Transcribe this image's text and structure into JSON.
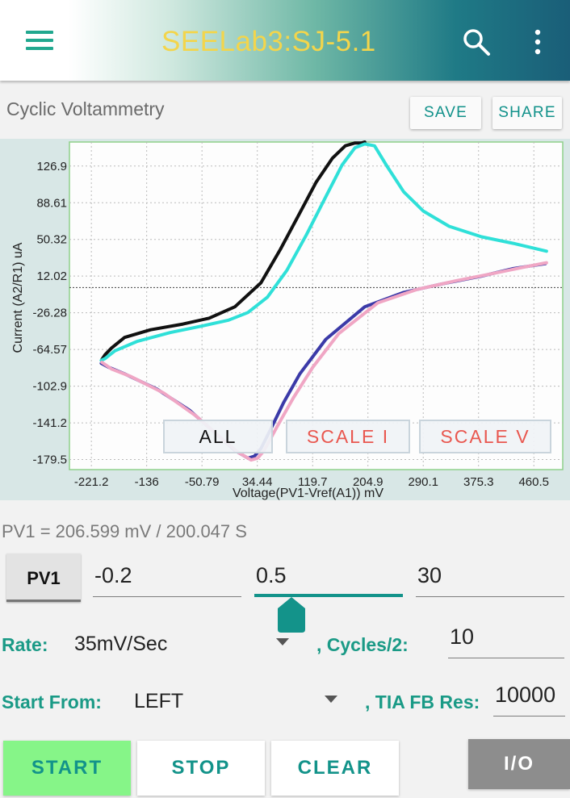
{
  "appbar": {
    "title": "SEELab3:SJ-5.1",
    "icons": [
      "menu-icon",
      "search-icon",
      "more-vertical-icon"
    ]
  },
  "section": {
    "title": "Cyclic Voltammetry",
    "save_label": "SAVE",
    "share_label": "SHARE"
  },
  "chart_data": {
    "type": "line",
    "xlabel": "Voltage(PV1-Vref(A1)) mV",
    "ylabel": "Current (A2/R1) uA",
    "x_ticks": [
      "-221.2",
      "-136",
      "-50.79",
      "34.44",
      "119.7",
      "204.9",
      "290.1",
      "375.3",
      "460.5"
    ],
    "y_ticks": [
      "126.9",
      "88.61",
      "50.32",
      "12.02",
      "-26.28",
      "-64.57",
      "-102.9",
      "-141.2",
      "-179.5"
    ],
    "xlim": [
      -255,
      505
    ],
    "ylim": [
      -190,
      152
    ],
    "grid": true,
    "zero_line": true,
    "series": [
      {
        "color": "#111111",
        "x": [
          -205,
          -200,
          -190,
          -170,
          -130,
          -80,
          -40,
          0,
          40,
          70,
          100,
          125,
          150,
          170,
          185,
          195,
          200
        ],
        "y": [
          -75,
          -70,
          -63,
          -52,
          -44,
          -38,
          -32,
          -20,
          5,
          40,
          78,
          110,
          135,
          148,
          151,
          151,
          152
        ]
      },
      {
        "color": "#2fe0d8",
        "x": [
          -206,
          -200,
          -185,
          -150,
          -100,
          -50,
          -10,
          20,
          50,
          80,
          110,
          140,
          165,
          185,
          200,
          215,
          235,
          260,
          290,
          330,
          380,
          430,
          480
        ],
        "y": [
          -76,
          -74,
          -66,
          -56,
          -47,
          -40,
          -34,
          -26,
          -10,
          18,
          55,
          95,
          128,
          146,
          150,
          148,
          126,
          100,
          80,
          64,
          53,
          46,
          38
        ]
      },
      {
        "color": "#3b3aa8",
        "x": [
          -206,
          -195,
          -170,
          -120,
          -70,
          -30,
          0,
          20,
          30,
          40,
          55,
          75,
          100,
          140,
          200,
          260,
          320,
          380,
          430,
          478
        ],
        "y": [
          -79,
          -83,
          -90,
          -106,
          -128,
          -152,
          -170,
          -178,
          -176,
          -168,
          -148,
          -120,
          -90,
          -54,
          -20,
          -5,
          4,
          12,
          20,
          25
        ]
      },
      {
        "color": "#f0a6c4",
        "x": [
          -205,
          -190,
          -160,
          -110,
          -60,
          -20,
          5,
          25,
          35,
          45,
          65,
          90,
          120,
          160,
          220,
          280,
          340,
          400,
          450,
          480
        ],
        "y": [
          -78,
          -85,
          -93,
          -110,
          -134,
          -158,
          -172,
          -180,
          -178,
          -170,
          -145,
          -115,
          -83,
          -48,
          -16,
          -2,
          7,
          15,
          22,
          26
        ]
      }
    ]
  },
  "overlay_buttons": {
    "all_label": "ALL",
    "scale_i_label": "SCALE I",
    "scale_v_label": "SCALE V"
  },
  "status": {
    "text": "PV1 = 206.599 mV / 200.047 S"
  },
  "controls": {
    "pv1_label": "PV1",
    "min_value": "-0.2",
    "mid_value": "0.5",
    "max_value": "30",
    "rate_label": "Rate:",
    "rate_value": "35mV/Sec",
    "cycles_label": ", Cycles/2:",
    "cycles_value": "10",
    "start_label": "Start From:",
    "start_value": "LEFT",
    "tia_label": ", TIA FB Res:",
    "tia_value": "10000"
  },
  "buttons": {
    "start": "START",
    "stop": "STOP",
    "clear": "CLEAR",
    "io": "I/O"
  },
  "colors": {
    "accent": "#13938a",
    "title": "#f3d54b",
    "start_bg": "#86f588",
    "scale_text": "#e9574f"
  }
}
